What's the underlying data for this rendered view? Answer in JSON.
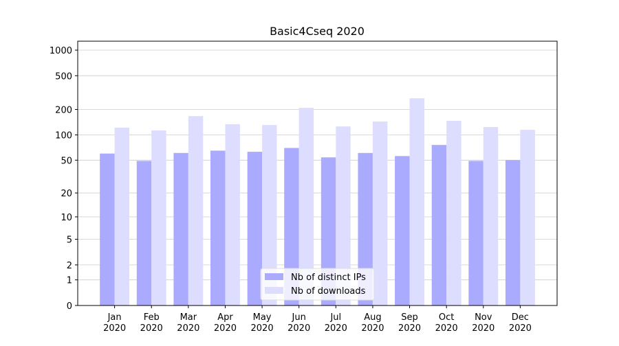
{
  "chart_data": {
    "type": "bar",
    "title": "Basic4Cseq 2020",
    "categories": [
      "Jan\n2020",
      "Feb\n2020",
      "Mar\n2020",
      "Apr\n2020",
      "May\n2020",
      "Jun\n2020",
      "Jul\n2020",
      "Aug\n2020",
      "Sep\n2020",
      "Oct\n2020",
      "Nov\n2020",
      "Dec\n2020"
    ],
    "series": [
      {
        "name": "Nb of distinct IPs",
        "color": "#aaaaff",
        "values": [
          60,
          49,
          61,
          65,
          63,
          70,
          54,
          61,
          56,
          76,
          49,
          50
        ]
      },
      {
        "name": "Nb of downloads",
        "color": "#ddddff",
        "values": [
          122,
          113,
          167,
          134,
          131,
          209,
          126,
          144,
          271,
          147,
          124,
          115
        ]
      }
    ],
    "yscale": "log1p",
    "ylim": [
      0,
      1274
    ],
    "yticks": [
      0,
      1,
      2,
      5,
      10,
      20,
      50,
      100,
      200,
      500,
      1000
    ],
    "grid": true,
    "legend": "lower center"
  }
}
